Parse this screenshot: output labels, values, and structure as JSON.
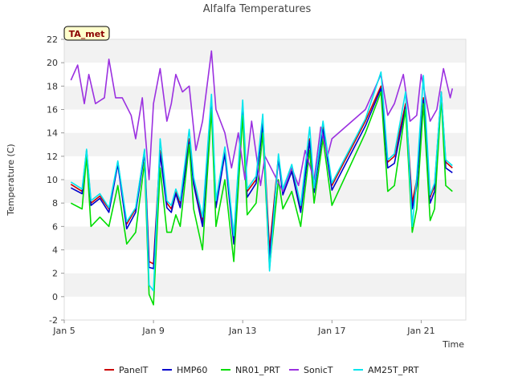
{
  "chart_data": {
    "type": "line",
    "title": "Alfalfa Temperatures",
    "xlabel": "Time",
    "ylabel": "Temperature (C)",
    "badge": "TA_met",
    "xlim": [
      0,
      18
    ],
    "ylim": [
      -2,
      22
    ],
    "x_ticks": [
      {
        "x": 0,
        "label": "Jan 5"
      },
      {
        "x": 4,
        "label": "Jan 9"
      },
      {
        "x": 8,
        "label": "Jan 13"
      },
      {
        "x": 12,
        "label": "Jan 17"
      },
      {
        "x": 16,
        "label": "Jan 21"
      }
    ],
    "y_ticks": [
      -2,
      0,
      2,
      4,
      6,
      8,
      10,
      12,
      14,
      16,
      18,
      20,
      22
    ],
    "grid": "horizontal bands",
    "legend_position": "bottom",
    "series": [
      {
        "name": "PanelT",
        "color": "#cc0000",
        "x": [
          0.3,
          0.8,
          1.0,
          1.2,
          1.6,
          2.0,
          2.4,
          2.8,
          3.2,
          3.6,
          3.8,
          4.0,
          4.3,
          4.6,
          4.8,
          5.0,
          5.2,
          5.6,
          5.8,
          6.2,
          6.6,
          6.8,
          7.2,
          7.6,
          8.0,
          8.2,
          8.6,
          8.9,
          9.2,
          9.6,
          9.8,
          10.2,
          10.6,
          11.0,
          11.2,
          11.6,
          12.0,
          13.5,
          14.2,
          14.5,
          14.8,
          15.3,
          15.6,
          15.8,
          16.1,
          16.4,
          16.6,
          16.9,
          17.1,
          17.4
        ],
        "y": [
          9.6,
          9.0,
          12.5,
          8.0,
          8.6,
          7.5,
          11.5,
          6.2,
          7.5,
          12.5,
          3.0,
          2.8,
          12.5,
          8.0,
          7.5,
          9.0,
          8.0,
          13.5,
          10.0,
          6.5,
          16.5,
          8.0,
          12.5,
          5.0,
          16.0,
          9.0,
          10.0,
          15.0,
          4.0,
          12.0,
          9.0,
          11.0,
          7.5,
          13.5,
          9.2,
          14.5,
          9.5,
          15.0,
          18.0,
          11.5,
          12.0,
          16.5,
          8.0,
          10.0,
          17.0,
          8.5,
          9.5,
          17.5,
          11.5,
          11.0
        ]
      },
      {
        "name": "HMP60",
        "color": "#0000cc",
        "x": [
          0.3,
          0.8,
          1.0,
          1.2,
          1.6,
          2.0,
          2.4,
          2.8,
          3.2,
          3.6,
          3.8,
          4.0,
          4.3,
          4.6,
          4.8,
          5.0,
          5.2,
          5.6,
          5.8,
          6.2,
          6.6,
          6.8,
          7.2,
          7.6,
          8.0,
          8.2,
          8.6,
          8.9,
          9.2,
          9.6,
          9.8,
          10.2,
          10.6,
          11.0,
          11.2,
          11.6,
          12.0,
          13.5,
          14.2,
          14.5,
          14.8,
          15.3,
          15.6,
          15.8,
          16.1,
          16.4,
          16.6,
          16.9,
          17.1,
          17.4
        ],
        "y": [
          9.3,
          8.8,
          12.3,
          7.8,
          8.4,
          7.2,
          11.3,
          5.8,
          7.2,
          12.3,
          2.5,
          2.4,
          12.2,
          7.6,
          7.2,
          8.8,
          7.6,
          13.2,
          9.6,
          6.0,
          16.3,
          7.6,
          12.2,
          4.5,
          15.8,
          8.5,
          9.7,
          14.7,
          3.2,
          11.8,
          8.7,
          10.7,
          7.2,
          13.3,
          8.9,
          14.3,
          9.1,
          14.6,
          17.8,
          11.0,
          11.4,
          16.2,
          7.5,
          9.5,
          16.8,
          8.0,
          9.0,
          17.2,
          11.0,
          10.6
        ]
      },
      {
        "name": "NR01_PRT",
        "color": "#00dd00",
        "x": [
          0.3,
          0.8,
          1.0,
          1.2,
          1.6,
          2.0,
          2.4,
          2.8,
          3.2,
          3.6,
          3.8,
          4.0,
          4.3,
          4.6,
          4.8,
          5.0,
          5.2,
          5.6,
          5.8,
          6.2,
          6.6,
          6.8,
          7.2,
          7.6,
          8.0,
          8.2,
          8.6,
          8.9,
          9.2,
          9.6,
          9.8,
          10.2,
          10.6,
          11.0,
          11.2,
          11.6,
          12.0,
          13.5,
          14.2,
          14.5,
          14.8,
          15.3,
          15.6,
          15.8,
          16.1,
          16.4,
          16.6,
          16.9,
          17.1,
          17.4
        ],
        "y": [
          8.0,
          7.5,
          12.0,
          6.0,
          6.8,
          6.0,
          9.5,
          4.5,
          5.5,
          11.5,
          0.2,
          -0.7,
          11.0,
          5.5,
          5.5,
          7.0,
          6.0,
          13.0,
          7.5,
          4.0,
          16.0,
          6.0,
          10.0,
          3.0,
          15.5,
          7.0,
          8.0,
          14.0,
          2.5,
          10.0,
          7.5,
          9.0,
          6.0,
          12.5,
          8.0,
          13.5,
          7.8,
          14.0,
          17.5,
          9.0,
          9.5,
          16.0,
          5.5,
          7.5,
          16.5,
          6.5,
          7.5,
          17.0,
          9.5,
          9.0
        ]
      },
      {
        "name": "SonicT",
        "color": "#9b30e0",
        "x": [
          0.3,
          0.6,
          0.9,
          1.1,
          1.4,
          1.8,
          2.0,
          2.3,
          2.6,
          3.0,
          3.2,
          3.5,
          3.8,
          4.0,
          4.3,
          4.6,
          4.8,
          5.0,
          5.3,
          5.6,
          5.9,
          6.2,
          6.6,
          6.8,
          7.2,
          7.5,
          7.8,
          8.1,
          8.4,
          8.8,
          9.0,
          9.4,
          9.8,
          10.2,
          10.5,
          10.8,
          11.2,
          11.5,
          11.8,
          12.0,
          13.5,
          14.2,
          14.5,
          14.8,
          15.2,
          15.5,
          15.8,
          16.0,
          16.4,
          16.7,
          17.0,
          17.3,
          17.4
        ],
        "y": [
          18.5,
          19.8,
          16.5,
          19.0,
          16.5,
          17.0,
          20.3,
          17.0,
          17.0,
          15.5,
          13.5,
          17.0,
          10.0,
          16.5,
          19.5,
          15.0,
          16.5,
          19.0,
          17.5,
          18.0,
          12.5,
          15.0,
          21.0,
          16.0,
          14.0,
          11.0,
          14.0,
          10.0,
          15.0,
          9.5,
          12.0,
          10.5,
          9.0,
          11.0,
          9.5,
          12.5,
          10.0,
          14.5,
          12.0,
          13.5,
          16.0,
          19.0,
          15.5,
          16.5,
          19.0,
          15.0,
          15.5,
          19.0,
          15.0,
          16.0,
          19.5,
          17.0,
          17.8
        ]
      },
      {
        "name": "AM25T_PRT",
        "color": "#00e5ee",
        "x": [
          0.3,
          0.8,
          1.0,
          1.2,
          1.6,
          2.0,
          2.4,
          2.8,
          3.2,
          3.6,
          3.8,
          4.0,
          4.3,
          4.6,
          4.8,
          5.0,
          5.2,
          5.6,
          5.8,
          6.2,
          6.6,
          6.8,
          7.2,
          7.6,
          8.0,
          8.2,
          8.6,
          8.9,
          9.2,
          9.6,
          9.8,
          10.2,
          10.6,
          11.0,
          11.2,
          11.6,
          12.0,
          13.5,
          14.2,
          14.5,
          14.8,
          15.3,
          15.6,
          15.8,
          16.1,
          16.4,
          16.6,
          16.9,
          17.1,
          17.4
        ],
        "y": [
          9.8,
          9.2,
          12.6,
          8.2,
          8.8,
          7.6,
          11.6,
          6.4,
          7.6,
          12.6,
          1.0,
          0.5,
          13.5,
          8.2,
          7.8,
          9.2,
          8.2,
          14.3,
          10.2,
          6.8,
          17.3,
          8.2,
          12.8,
          5.2,
          16.8,
          9.2,
          10.3,
          15.6,
          2.2,
          12.2,
          9.2,
          11.3,
          7.8,
          14.5,
          9.3,
          15.0,
          9.7,
          15.2,
          19.2,
          11.7,
          12.2,
          17.5,
          6.0,
          10.2,
          18.9,
          8.7,
          9.7,
          17.5,
          11.7,
          11.2
        ]
      }
    ]
  }
}
